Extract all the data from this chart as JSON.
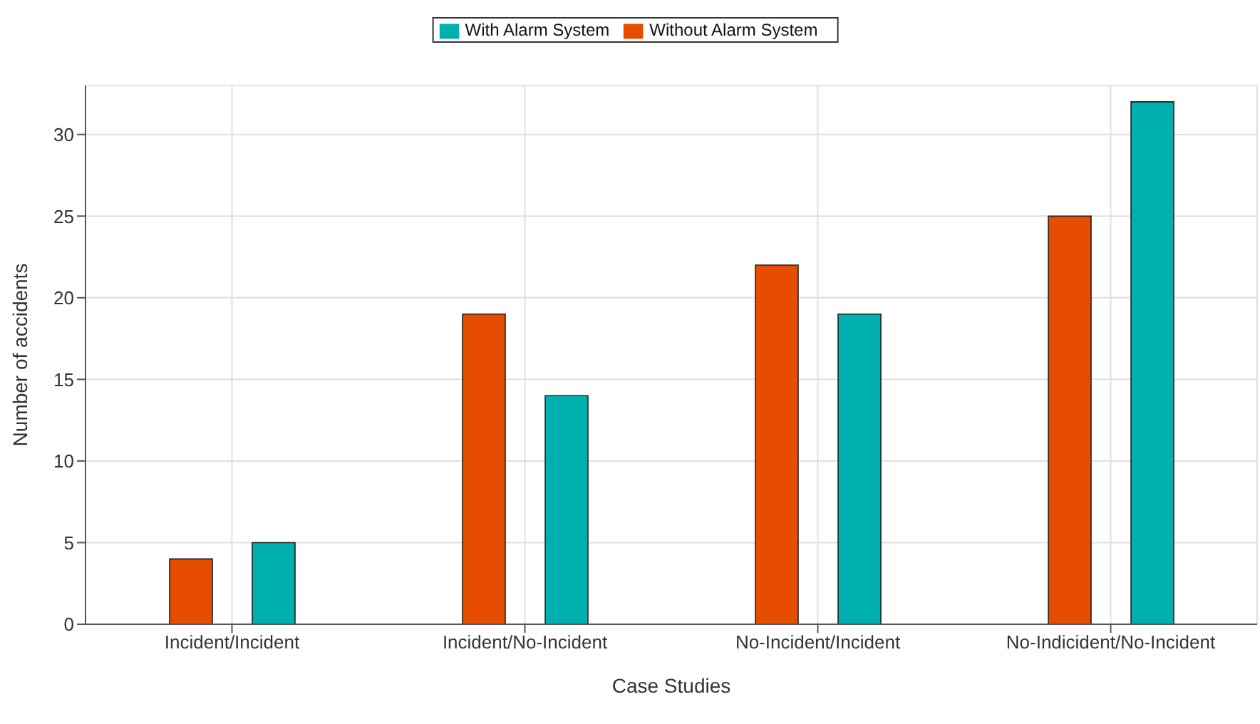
{
  "chart_data": {
    "type": "bar",
    "xlabel": "Case Studies",
    "ylabel": "Number of accidents",
    "categories": [
      "Incident/Incident",
      "Incident/No-Incident",
      "No-Incident/Incident",
      "No-Indicident/No-Incident"
    ],
    "series": [
      {
        "name": "Without Alarm System",
        "color": "#e64d00",
        "values": [
          4,
          19,
          22,
          25
        ]
      },
      {
        "name": "With Alarm System",
        "color": "#00b0b0",
        "values": [
          5,
          14,
          19,
          32
        ]
      }
    ],
    "ylim": [
      0,
      33
    ],
    "yticks": [
      0,
      5,
      10,
      15,
      20,
      25,
      30
    ],
    "grid": true,
    "legend": "top"
  }
}
